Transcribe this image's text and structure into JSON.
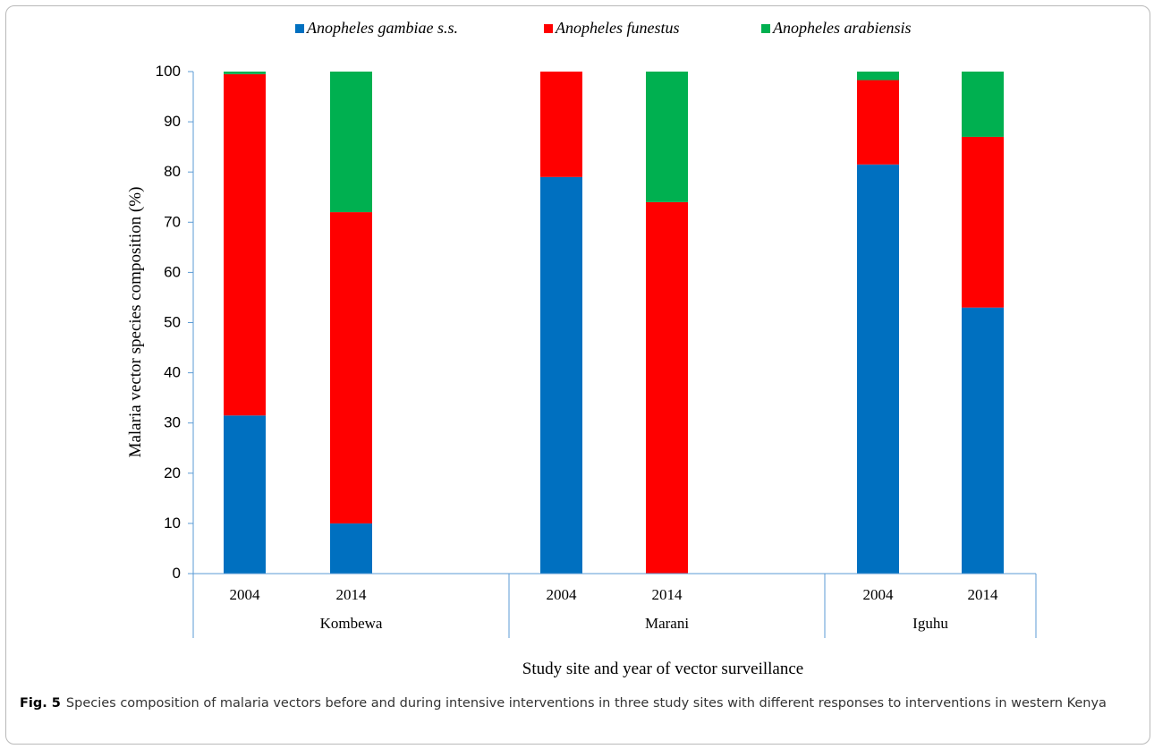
{
  "chart_data": {
    "type": "bar",
    "stacked": true,
    "series": [
      {
        "name": "Anopheles gambiae s.s.",
        "color": "#0070C0",
        "values": [
          31.5,
          10,
          79,
          0,
          81.5,
          53
        ]
      },
      {
        "name": "Anopheles funestus",
        "color": "#FF0000",
        "values": [
          68,
          62,
          21,
          74,
          16.8,
          34
        ]
      },
      {
        "name": "Anopheles arabiensis",
        "color": "#00B050",
        "values": [
          0.5,
          28,
          0,
          26,
          1.7,
          13
        ]
      }
    ],
    "categories": [
      {
        "year": "2004",
        "site": "Kombewa"
      },
      {
        "year": "2014",
        "site": "Kombewa"
      },
      {
        "year": "2004",
        "site": "Marani"
      },
      {
        "year": "2014",
        "site": "Marani"
      },
      {
        "year": "2004",
        "site": "Iguhu"
      },
      {
        "year": "2014",
        "site": "Iguhu"
      }
    ],
    "groups": [
      "Kombewa",
      "Marani",
      "Iguhu"
    ],
    "yticks": [
      "0",
      "10",
      "20",
      "30",
      "40",
      "50",
      "60",
      "70",
      "80",
      "90",
      "100"
    ],
    "ylim": [
      0,
      100
    ],
    "ylabel": "Malaria vector species composition (%)",
    "xlabel": "Study site and year of vector surveillance",
    "legend_position": "top",
    "grid": false
  },
  "caption": {
    "label": "Fig. 5",
    "text": "Species composition of malaria vectors before and during intensive interventions in three study sites with different responses to interventions in western Kenya"
  }
}
